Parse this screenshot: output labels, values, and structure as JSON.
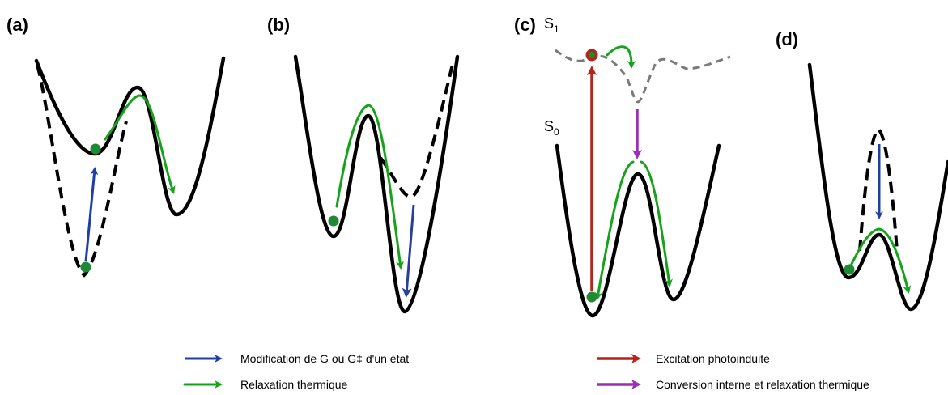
{
  "panels": {
    "a": {
      "label": "(a)"
    },
    "b": {
      "label": "(b)"
    },
    "c": {
      "label": "(c)",
      "s1_main": "S",
      "s1_sub": "1",
      "s0_main": "S",
      "s0_sub": "0"
    },
    "d": {
      "label": "(d)"
    }
  },
  "legend": {
    "blue_text": "Modification de G ou G‡ d'un état",
    "green_text": "Relaxation thermique",
    "red_text": "Excitation photoinduite",
    "purple_text": "Conversion interne et relaxation thermique"
  },
  "colors": {
    "blue": "#1f3fa6",
    "green": "#16a21a",
    "red": "#b42418",
    "purple": "#9b2fb6",
    "dot": "#1e8a34",
    "grey_dashed": "#7a7a7a"
  }
}
